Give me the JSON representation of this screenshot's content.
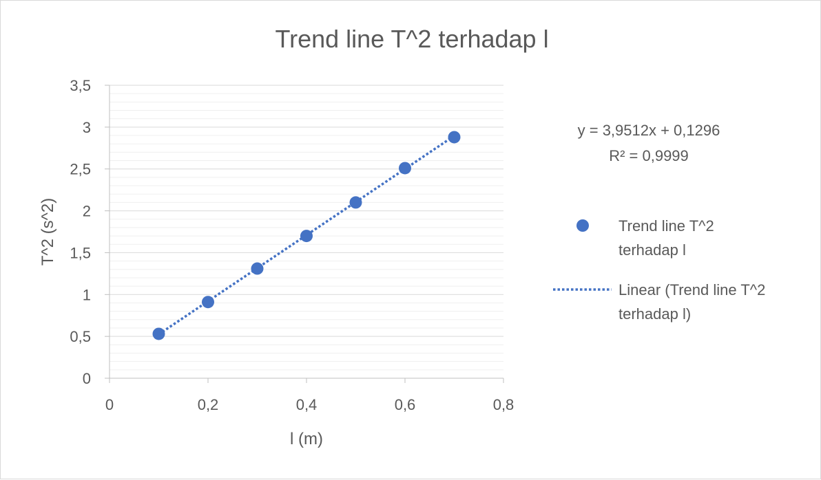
{
  "chart_data": {
    "type": "scatter",
    "title": "Trend line T^2 terhadap l",
    "xlabel": "l (m)",
    "ylabel": "T^2 (s^2)",
    "xlim": [
      0,
      0.8
    ],
    "ylim": [
      0,
      3.5
    ],
    "x_ticks": [
      "0",
      "0,2",
      "0,4",
      "0,6",
      "0,8"
    ],
    "y_ticks": [
      "0",
      "0,5",
      "1",
      "1,5",
      "2",
      "2,5",
      "3",
      "3,5"
    ],
    "grid": true,
    "legend_position": "right",
    "series": [
      {
        "name": "Trend line T^2 terhadap l",
        "color": "#4472c4",
        "x": [
          0.1,
          0.2,
          0.3,
          0.4,
          0.5,
          0.6,
          0.7
        ],
        "y": [
          0.53,
          0.91,
          1.31,
          1.7,
          2.1,
          2.51,
          2.88
        ]
      }
    ],
    "trendline": {
      "type": "linear",
      "slope": 3.9512,
      "intercept": 0.1296,
      "x_range": [
        0.1,
        0.7
      ],
      "color": "#4472c4",
      "legend_label": "Linear (Trend line T^2 terhadap l)",
      "equation": "y = 3,9512x + 0,1296",
      "r_squared": "R² = 0,9999"
    },
    "legend": [
      {
        "label": "Trend line T^2 terhadap l",
        "line1": "Trend line T^2",
        "line2": "terhadap l",
        "marker": "circle"
      },
      {
        "label": "Linear (Trend line T^2 terhadap l)",
        "line1": "Linear (Trend line T^2",
        "line2": "terhadap l)",
        "marker": "dotted-line"
      }
    ]
  }
}
